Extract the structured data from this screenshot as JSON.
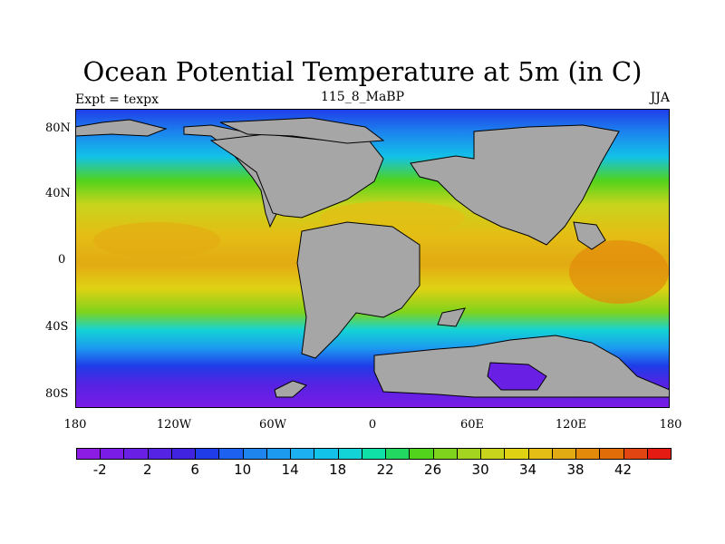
{
  "plot": {
    "title": "Ocean Potential Temperature at 5m (in C)",
    "left_string": "Expt = texpx",
    "center_string": "115_8_MaBP",
    "right_string": "JJA"
  },
  "axes": {
    "x_ticks": [
      "180",
      "120W",
      "60W",
      "0",
      "60E",
      "120E",
      "180"
    ],
    "y_ticks": [
      "80N",
      "40N",
      "0",
      "40S",
      "80S"
    ]
  },
  "colorbar": {
    "colors": [
      "#8c1ce3",
      "#7a1ce6",
      "#6a1fe5",
      "#5523e3",
      "#3f23e0",
      "#1f3ce8",
      "#1c61ef",
      "#1f85ee",
      "#1c9af0",
      "#1cb0f0",
      "#12c2e9",
      "#13d3d6",
      "#0ee0a8",
      "#22d861",
      "#52d31c",
      "#7fd31c",
      "#a4d41f",
      "#c8d41c",
      "#e0d213",
      "#e4be14",
      "#e2aa13",
      "#e38a0b",
      "#e16d08",
      "#e04512",
      "#e31b12"
    ],
    "labels": [
      "-2",
      "2",
      "6",
      "10",
      "14",
      "18",
      "22",
      "26",
      "30",
      "34",
      "38",
      "42"
    ]
  },
  "legend_colors": {
    "land": "#a6a6a6",
    "coast": "#000000"
  }
}
